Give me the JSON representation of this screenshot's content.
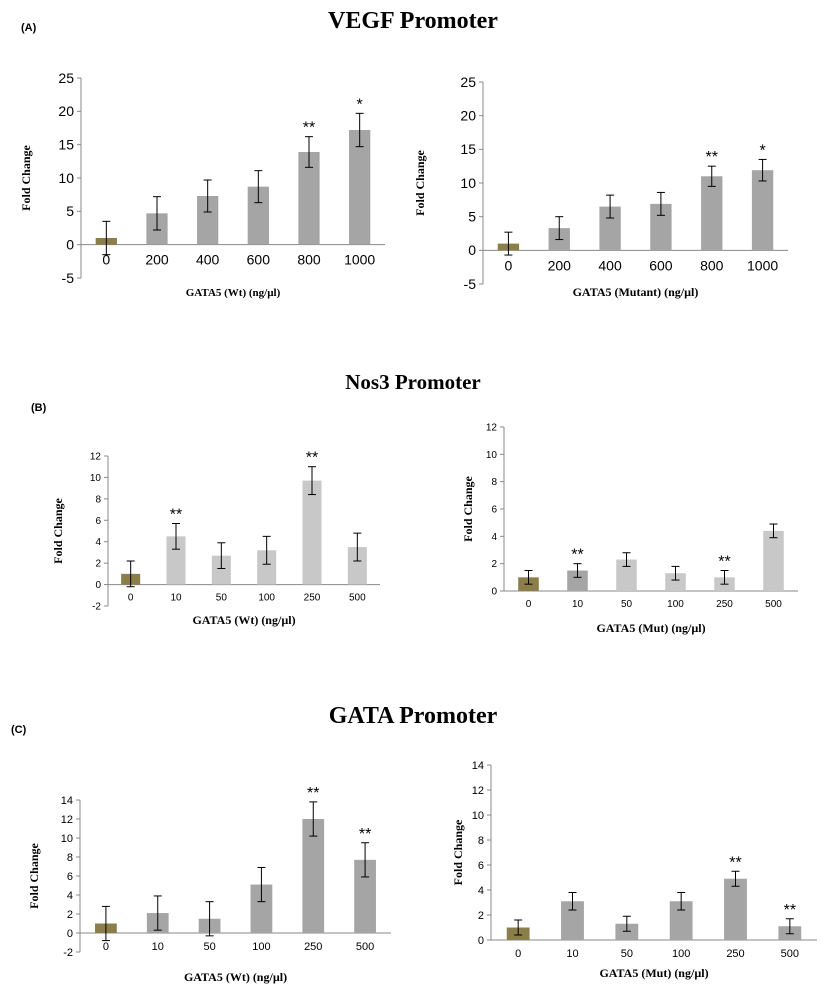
{
  "sections": {
    "vegf": {
      "title": "VEGF Promoter",
      "label": "(A)"
    },
    "nos3": {
      "title": "Nos3 Promoter",
      "label": "(B)"
    },
    "gata": {
      "title": "GATA Promoter",
      "label": "(C)"
    }
  },
  "colors": {
    "control": "#8b7e4a",
    "dark": "#a5a5a5",
    "light": "#c8c8c8",
    "error": "#000000"
  },
  "chart_data": [
    {
      "type": "bar",
      "panel": "A-left",
      "categories": [
        "0",
        "200",
        "400",
        "600",
        "800",
        "1000"
      ],
      "values": [
        1,
        4.7,
        7.3,
        8.7,
        13.9,
        17.2
      ],
      "errors": [
        2.5,
        2.5,
        2.4,
        2.4,
        2.3,
        2.5
      ],
      "significance": [
        "",
        "",
        "",
        "",
        "**",
        "*"
      ],
      "bar_colors": [
        "control",
        "dark",
        "dark",
        "dark",
        "dark",
        "dark"
      ],
      "xlabel": "GATA5 (Wt) (ng/µl)",
      "ylabel": "Fold Change",
      "ylim": [
        -5,
        25
      ],
      "yticks": [
        -5,
        0,
        5,
        10,
        15,
        20,
        25
      ],
      "ytick_labels": [
        "-5",
        "0",
        "5",
        "10",
        "15",
        "20",
        "25"
      ]
    },
    {
      "type": "bar",
      "panel": "A-right",
      "categories": [
        "0",
        "200",
        "400",
        "600",
        "800",
        "1000"
      ],
      "values": [
        1,
        3.3,
        6.5,
        6.9,
        11,
        11.9
      ],
      "errors": [
        1.7,
        1.7,
        1.7,
        1.7,
        1.5,
        1.6
      ],
      "significance": [
        "",
        "",
        "",
        "",
        "**",
        "*"
      ],
      "bar_colors": [
        "control",
        "dark",
        "dark",
        "dark",
        "dark",
        "dark"
      ],
      "xlabel": "GATA5 (Mutant) (ng/µl)",
      "ylabel": "Fold Change",
      "ylim": [
        -5,
        25
      ],
      "yticks": [
        -5,
        0,
        5,
        10,
        15,
        20,
        25
      ],
      "ytick_labels": [
        "-5",
        "0",
        "5",
        "10",
        "15",
        "20",
        "25"
      ]
    },
    {
      "type": "bar",
      "panel": "B-left",
      "categories": [
        "0",
        "10",
        "50",
        "100",
        "250",
        "500"
      ],
      "values": [
        1,
        4.5,
        2.7,
        3.2,
        9.7,
        3.5
      ],
      "errors": [
        1.2,
        1.2,
        1.2,
        1.3,
        1.3,
        1.3
      ],
      "significance": [
        "",
        "**",
        "",
        "",
        "**",
        ""
      ],
      "bar_colors": [
        "control",
        "light",
        "light",
        "light",
        "light",
        "light"
      ],
      "xlabel": "GATA5 (Wt) (ng/µl)",
      "ylabel": "Fold Change",
      "ylim": [
        -2,
        12
      ],
      "yticks": [
        -2,
        0,
        2,
        4,
        6,
        8,
        10,
        12
      ],
      "ytick_labels": [
        "-2",
        "0",
        "2",
        "4",
        "6",
        "8",
        "10",
        "12"
      ]
    },
    {
      "type": "bar",
      "panel": "B-right",
      "categories": [
        "0",
        "10",
        "50",
        "100",
        "250",
        "500"
      ],
      "values": [
        1,
        1.5,
        2.3,
        1.3,
        1,
        4.4
      ],
      "errors": [
        0.5,
        0.5,
        0.5,
        0.5,
        0.5,
        0.5
      ],
      "significance": [
        "",
        "**",
        "",
        "",
        "**",
        ""
      ],
      "bar_colors": [
        "control",
        "dark",
        "light",
        "light",
        "light",
        "light"
      ],
      "xlabel": "GATA5 (Mut) (ng/µl)",
      "ylabel": "Fold Change",
      "ylim": [
        0,
        12
      ],
      "yticks": [
        0,
        2,
        4,
        6,
        8,
        10,
        12
      ],
      "ytick_labels": [
        "0",
        "2",
        "4",
        "6",
        "8",
        "10",
        "12"
      ]
    },
    {
      "type": "bar",
      "panel": "C-left",
      "categories": [
        "0",
        "10",
        "50",
        "100",
        "250",
        "500"
      ],
      "values": [
        1,
        2.1,
        1.5,
        5.1,
        12,
        7.7
      ],
      "errors": [
        1.8,
        1.8,
        1.8,
        1.8,
        1.8,
        1.8
      ],
      "significance": [
        "",
        "",
        "",
        "",
        "**",
        "**"
      ],
      "bar_colors": [
        "control",
        "dark",
        "dark",
        "dark",
        "dark",
        "dark"
      ],
      "xlabel": "GATA5 (Wt) (ng/µl)",
      "ylabel": "Fold Change",
      "ylim": [
        -2,
        14
      ],
      "yticks": [
        -2,
        0,
        2,
        4,
        6,
        8,
        10,
        12,
        14
      ],
      "ytick_labels": [
        "-2",
        "0",
        "2",
        "4",
        "6",
        "8",
        "10",
        "12",
        "14"
      ]
    },
    {
      "type": "bar",
      "panel": "C-right",
      "categories": [
        "0",
        "10",
        "50",
        "100",
        "250",
        "500"
      ],
      "values": [
        1,
        3.1,
        1.3,
        3.1,
        4.9,
        1.1
      ],
      "errors": [
        0.6,
        0.7,
        0.6,
        0.7,
        0.6,
        0.6
      ],
      "significance": [
        "",
        "",
        "",
        "",
        "**",
        "**"
      ],
      "bar_colors": [
        "control",
        "dark",
        "dark",
        "dark",
        "dark",
        "dark"
      ],
      "xlabel": "GATA5 (Mut) (ng/µl)",
      "ylabel": "Fold Change",
      "ylim": [
        0,
        14
      ],
      "yticks": [
        0,
        2,
        4,
        6,
        8,
        10,
        12,
        14
      ],
      "ytick_labels": [
        "0",
        "2",
        "4",
        "6",
        "8",
        "10",
        "12",
        "14"
      ]
    }
  ]
}
